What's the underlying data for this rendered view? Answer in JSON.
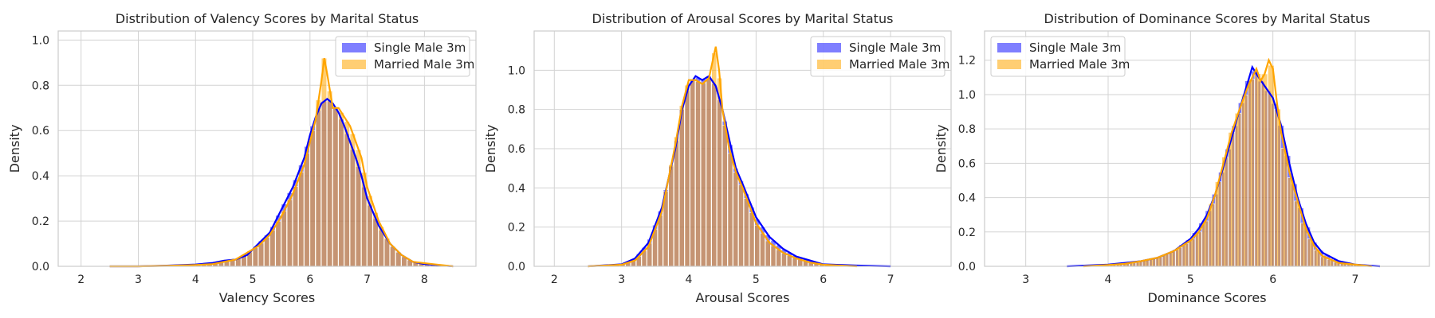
{
  "colors": {
    "series_single": "#0000ff",
    "series_married": "#ffa500",
    "grid": "#d3d3d3",
    "frame": "#cccccc",
    "background": "#ffffff"
  },
  "chart_data": [
    {
      "type": "histogram",
      "title": "Distribution of Valency Scores by Marital Status",
      "xlabel": "Valency Scores",
      "ylabel": "Density",
      "xlim": [
        1.6,
        8.9
      ],
      "ylim": [
        0,
        1.04
      ],
      "xticks": [
        2,
        3,
        4,
        5,
        6,
        7,
        8
      ],
      "yticks": [
        0.0,
        0.2,
        0.4,
        0.6,
        0.8,
        1.0
      ],
      "grid": true,
      "legend_position": "top-right",
      "bin_width": 0.1,
      "series": [
        {
          "name": "Single Male 3m",
          "color": "#0000ff",
          "kde": [
            [
              2.5,
              0.0
            ],
            [
              3.0,
              0.0
            ],
            [
              3.5,
              0.003
            ],
            [
              4.0,
              0.008
            ],
            [
              4.3,
              0.015
            ],
            [
              4.5,
              0.025
            ],
            [
              4.7,
              0.03
            ],
            [
              4.9,
              0.05
            ],
            [
              5.1,
              0.1
            ],
            [
              5.3,
              0.15
            ],
            [
              5.5,
              0.25
            ],
            [
              5.7,
              0.35
            ],
            [
              5.9,
              0.48
            ],
            [
              6.0,
              0.58
            ],
            [
              6.1,
              0.66
            ],
            [
              6.2,
              0.72
            ],
            [
              6.3,
              0.74
            ],
            [
              6.4,
              0.72
            ],
            [
              6.5,
              0.68
            ],
            [
              6.6,
              0.62
            ],
            [
              6.7,
              0.55
            ],
            [
              6.8,
              0.48
            ],
            [
              6.9,
              0.4
            ],
            [
              7.0,
              0.3
            ],
            [
              7.2,
              0.18
            ],
            [
              7.4,
              0.1
            ],
            [
              7.6,
              0.05
            ],
            [
              7.8,
              0.02
            ],
            [
              8.0,
              0.01
            ],
            [
              8.5,
              0.0
            ]
          ]
        },
        {
          "name": "Married Male 3m",
          "color": "#ffa500",
          "kde": [
            [
              2.5,
              0.0
            ],
            [
              3.0,
              0.0
            ],
            [
              3.5,
              0.002
            ],
            [
              4.0,
              0.006
            ],
            [
              4.3,
              0.01
            ],
            [
              4.5,
              0.02
            ],
            [
              4.7,
              0.03
            ],
            [
              4.9,
              0.06
            ],
            [
              5.1,
              0.09
            ],
            [
              5.3,
              0.14
            ],
            [
              5.5,
              0.22
            ],
            [
              5.7,
              0.32
            ],
            [
              5.9,
              0.45
            ],
            [
              6.0,
              0.55
            ],
            [
              6.1,
              0.65
            ],
            [
              6.2,
              0.82
            ],
            [
              6.25,
              0.92
            ],
            [
              6.3,
              0.85
            ],
            [
              6.4,
              0.7
            ],
            [
              6.5,
              0.7
            ],
            [
              6.6,
              0.66
            ],
            [
              6.7,
              0.62
            ],
            [
              6.8,
              0.55
            ],
            [
              6.9,
              0.48
            ],
            [
              7.0,
              0.35
            ],
            [
              7.2,
              0.2
            ],
            [
              7.4,
              0.1
            ],
            [
              7.6,
              0.05
            ],
            [
              7.8,
              0.02
            ],
            [
              8.2,
              0.008
            ],
            [
              8.5,
              0.0
            ]
          ]
        }
      ]
    },
    {
      "type": "histogram",
      "title": "Distribution of Arousal Scores by Marital Status",
      "xlabel": "Arousal Scores",
      "ylabel": "Density",
      "xlim": [
        1.7,
        7.9
      ],
      "ylim": [
        0,
        1.2
      ],
      "xticks": [
        2,
        3,
        4,
        5,
        6,
        7
      ],
      "yticks": [
        0.0,
        0.2,
        0.4,
        0.6,
        0.8,
        1.0
      ],
      "grid": true,
      "legend_position": "top-right",
      "bin_width": 0.08,
      "series": [
        {
          "name": "Single Male 3m",
          "color": "#0000ff",
          "kde": [
            [
              2.5,
              0.0
            ],
            [
              3.0,
              0.01
            ],
            [
              3.2,
              0.04
            ],
            [
              3.4,
              0.12
            ],
            [
              3.6,
              0.3
            ],
            [
              3.8,
              0.6
            ],
            [
              3.9,
              0.8
            ],
            [
              4.0,
              0.92
            ],
            [
              4.1,
              0.97
            ],
            [
              4.2,
              0.95
            ],
            [
              4.3,
              0.97
            ],
            [
              4.4,
              0.92
            ],
            [
              4.5,
              0.8
            ],
            [
              4.6,
              0.65
            ],
            [
              4.7,
              0.5
            ],
            [
              4.8,
              0.42
            ],
            [
              5.0,
              0.25
            ],
            [
              5.2,
              0.15
            ],
            [
              5.4,
              0.09
            ],
            [
              5.6,
              0.05
            ],
            [
              5.8,
              0.03
            ],
            [
              6.0,
              0.01
            ],
            [
              6.5,
              0.004
            ],
            [
              7.0,
              0.0
            ]
          ]
        },
        {
          "name": "Married Male 3m",
          "color": "#ffa500",
          "kde": [
            [
              2.5,
              0.0
            ],
            [
              3.0,
              0.008
            ],
            [
              3.2,
              0.03
            ],
            [
              3.4,
              0.1
            ],
            [
              3.6,
              0.28
            ],
            [
              3.8,
              0.62
            ],
            [
              3.9,
              0.82
            ],
            [
              4.0,
              0.95
            ],
            [
              4.1,
              0.95
            ],
            [
              4.2,
              0.93
            ],
            [
              4.3,
              0.96
            ],
            [
              4.4,
              1.12
            ],
            [
              4.45,
              1.0
            ],
            [
              4.5,
              0.8
            ],
            [
              4.6,
              0.6
            ],
            [
              4.7,
              0.48
            ],
            [
              4.8,
              0.4
            ],
            [
              5.0,
              0.22
            ],
            [
              5.2,
              0.12
            ],
            [
              5.4,
              0.07
            ],
            [
              5.6,
              0.04
            ],
            [
              5.8,
              0.02
            ],
            [
              6.0,
              0.008
            ],
            [
              6.5,
              0.0
            ]
          ]
        }
      ]
    },
    {
      "type": "histogram",
      "title": "Distribution of Dominance Scores by Marital Status",
      "xlabel": "Dominance Scores",
      "ylabel": "Density",
      "xlim": [
        2.5,
        7.9
      ],
      "ylim": [
        0,
        1.37
      ],
      "xticks": [
        3,
        4,
        5,
        6,
        7
      ],
      "yticks": [
        0.0,
        0.2,
        0.4,
        0.6,
        0.8,
        1.0,
        1.2
      ],
      "grid": true,
      "legend_position": "top-left",
      "bin_width": 0.08,
      "series": [
        {
          "name": "Single Male 3m",
          "color": "#0000ff",
          "kde": [
            [
              3.5,
              0.0
            ],
            [
              4.0,
              0.01
            ],
            [
              4.2,
              0.02
            ],
            [
              4.4,
              0.03
            ],
            [
              4.6,
              0.05
            ],
            [
              4.8,
              0.09
            ],
            [
              5.0,
              0.16
            ],
            [
              5.1,
              0.22
            ],
            [
              5.2,
              0.3
            ],
            [
              5.3,
              0.42
            ],
            [
              5.4,
              0.58
            ],
            [
              5.5,
              0.75
            ],
            [
              5.6,
              0.92
            ],
            [
              5.7,
              1.08
            ],
            [
              5.75,
              1.16
            ],
            [
              5.8,
              1.12
            ],
            [
              5.9,
              1.05
            ],
            [
              6.0,
              0.98
            ],
            [
              6.1,
              0.82
            ],
            [
              6.2,
              0.6
            ],
            [
              6.3,
              0.4
            ],
            [
              6.4,
              0.25
            ],
            [
              6.5,
              0.14
            ],
            [
              6.6,
              0.08
            ],
            [
              6.8,
              0.03
            ],
            [
              7.0,
              0.01
            ],
            [
              7.3,
              0.0
            ]
          ]
        },
        {
          "name": "Married Male 3m",
          "color": "#ffa500",
          "kde": [
            [
              3.7,
              0.0
            ],
            [
              4.0,
              0.008
            ],
            [
              4.2,
              0.015
            ],
            [
              4.4,
              0.03
            ],
            [
              4.6,
              0.05
            ],
            [
              4.8,
              0.09
            ],
            [
              5.0,
              0.15
            ],
            [
              5.1,
              0.2
            ],
            [
              5.2,
              0.28
            ],
            [
              5.3,
              0.42
            ],
            [
              5.4,
              0.6
            ],
            [
              5.5,
              0.78
            ],
            [
              5.6,
              0.92
            ],
            [
              5.7,
              1.05
            ],
            [
              5.8,
              1.15
            ],
            [
              5.85,
              1.08
            ],
            [
              5.9,
              1.12
            ],
            [
              5.95,
              1.2
            ],
            [
              6.0,
              1.15
            ],
            [
              6.05,
              0.95
            ],
            [
              6.1,
              0.78
            ],
            [
              6.2,
              0.55
            ],
            [
              6.3,
              0.38
            ],
            [
              6.4,
              0.22
            ],
            [
              6.5,
              0.12
            ],
            [
              6.6,
              0.06
            ],
            [
              6.8,
              0.02
            ],
            [
              7.2,
              0.0
            ]
          ]
        }
      ]
    }
  ]
}
